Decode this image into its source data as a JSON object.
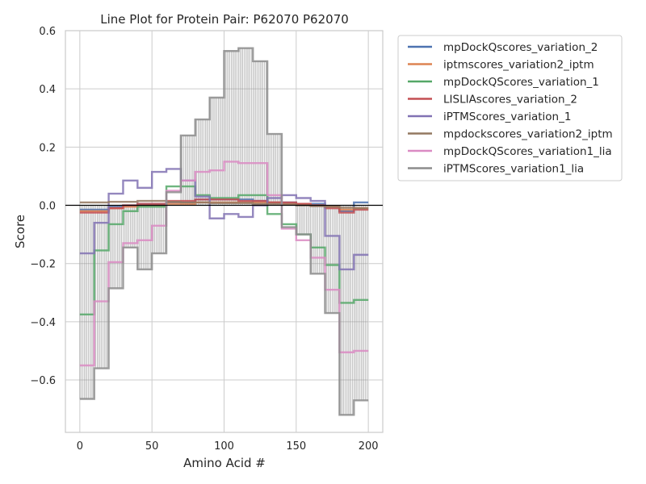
{
  "chart_data": {
    "type": "line",
    "title": "Line Plot for Protein Pair: P62070 P62070",
    "xlabel": "Amino Acid #",
    "ylabel": "Score",
    "xlim": [
      -10,
      210
    ],
    "ylim": [
      -0.78,
      0.6
    ],
    "xticks": [
      0,
      50,
      100,
      150,
      200
    ],
    "yticks": [
      -0.6,
      -0.4,
      -0.2,
      0.0,
      0.2,
      0.4,
      0.6
    ],
    "xtick_labels": [
      "0",
      "50",
      "100",
      "150",
      "200"
    ],
    "ytick_labels": [
      "−0.6",
      "−0.4",
      "−0.2",
      "0.0",
      "0.2",
      "0.4",
      "0.6"
    ],
    "grid": true,
    "zero_line": true,
    "legend_placement": "outside-right-top",
    "x": [
      0,
      10,
      20,
      30,
      40,
      50,
      60,
      70,
      80,
      90,
      100,
      110,
      120,
      130,
      140,
      150,
      160,
      170,
      180,
      190,
      200
    ],
    "series": [
      {
        "name": "mpDockQscores_variation_2",
        "color": "#4c72b0",
        "values": [
          -0.015,
          -0.015,
          -0.005,
          0.0,
          0.005,
          0.005,
          0.01,
          0.01,
          0.02,
          0.02,
          0.02,
          0.02,
          0.015,
          0.01,
          0.01,
          0.005,
          0.005,
          -0.005,
          -0.02,
          0.01,
          0.01
        ]
      },
      {
        "name": "iptmscores_variation2_iptm",
        "color": "#dd8452",
        "values": [
          -0.02,
          -0.02,
          -0.01,
          -0.005,
          0.0,
          0.0,
          0.005,
          0.005,
          0.01,
          0.01,
          0.01,
          0.01,
          0.01,
          0.01,
          0.005,
          0.005,
          0.0,
          -0.005,
          -0.015,
          -0.01,
          -0.01
        ]
      },
      {
        "name": "mpDockQScores_variation_1",
        "color": "#55a868",
        "values": [
          -0.375,
          -0.155,
          -0.065,
          -0.02,
          -0.005,
          -0.005,
          0.065,
          0.065,
          0.035,
          0.025,
          0.025,
          0.035,
          0.035,
          -0.03,
          -0.065,
          -0.1,
          -0.145,
          -0.205,
          -0.335,
          -0.325,
          -0.325
        ]
      },
      {
        "name": "LISLIAscores_variation_2",
        "color": "#c44e52",
        "values": [
          -0.025,
          -0.025,
          -0.01,
          0.0,
          0.005,
          0.005,
          0.015,
          0.015,
          0.02,
          0.02,
          0.02,
          0.015,
          0.015,
          0.01,
          0.01,
          0.005,
          0.0,
          -0.01,
          -0.025,
          -0.015,
          -0.015
        ]
      },
      {
        "name": "iPTMScores_variation_1",
        "color": "#8172b3",
        "values": [
          -0.165,
          -0.06,
          0.04,
          0.085,
          0.06,
          0.115,
          0.125,
          0.085,
          0.03,
          -0.045,
          -0.03,
          -0.04,
          0.0,
          0.025,
          0.035,
          0.025,
          0.015,
          -0.105,
          -0.22,
          -0.17,
          -0.17
        ]
      },
      {
        "name": "mpdockscores_variation2_iptm",
        "color": "#937860",
        "values": [
          0.01,
          0.01,
          0.012,
          0.012,
          0.015,
          0.015,
          0.012,
          0.01,
          0.01,
          0.008,
          0.008,
          0.008,
          0.005,
          0.005,
          0.003,
          0.0,
          -0.003,
          -0.005,
          -0.008,
          -0.01,
          -0.01
        ]
      },
      {
        "name": "mpDockQScores_variation1_lia",
        "color": "#da8bc3",
        "values": [
          -0.55,
          -0.33,
          -0.195,
          -0.13,
          -0.12,
          -0.07,
          0.05,
          0.085,
          0.115,
          0.12,
          0.15,
          0.145,
          0.145,
          0.035,
          -0.08,
          -0.12,
          -0.18,
          -0.29,
          -0.505,
          -0.5,
          -0.5
        ]
      },
      {
        "name": "iPTMScores_variation1_lia",
        "color": "#8c8c8c",
        "values": [
          -0.665,
          -0.56,
          -0.285,
          -0.145,
          -0.22,
          -0.165,
          0.045,
          0.24,
          0.295,
          0.37,
          0.53,
          0.54,
          0.495,
          0.245,
          -0.075,
          -0.1,
          -0.235,
          -0.37,
          -0.72,
          -0.67,
          -0.67
        ]
      }
    ]
  }
}
